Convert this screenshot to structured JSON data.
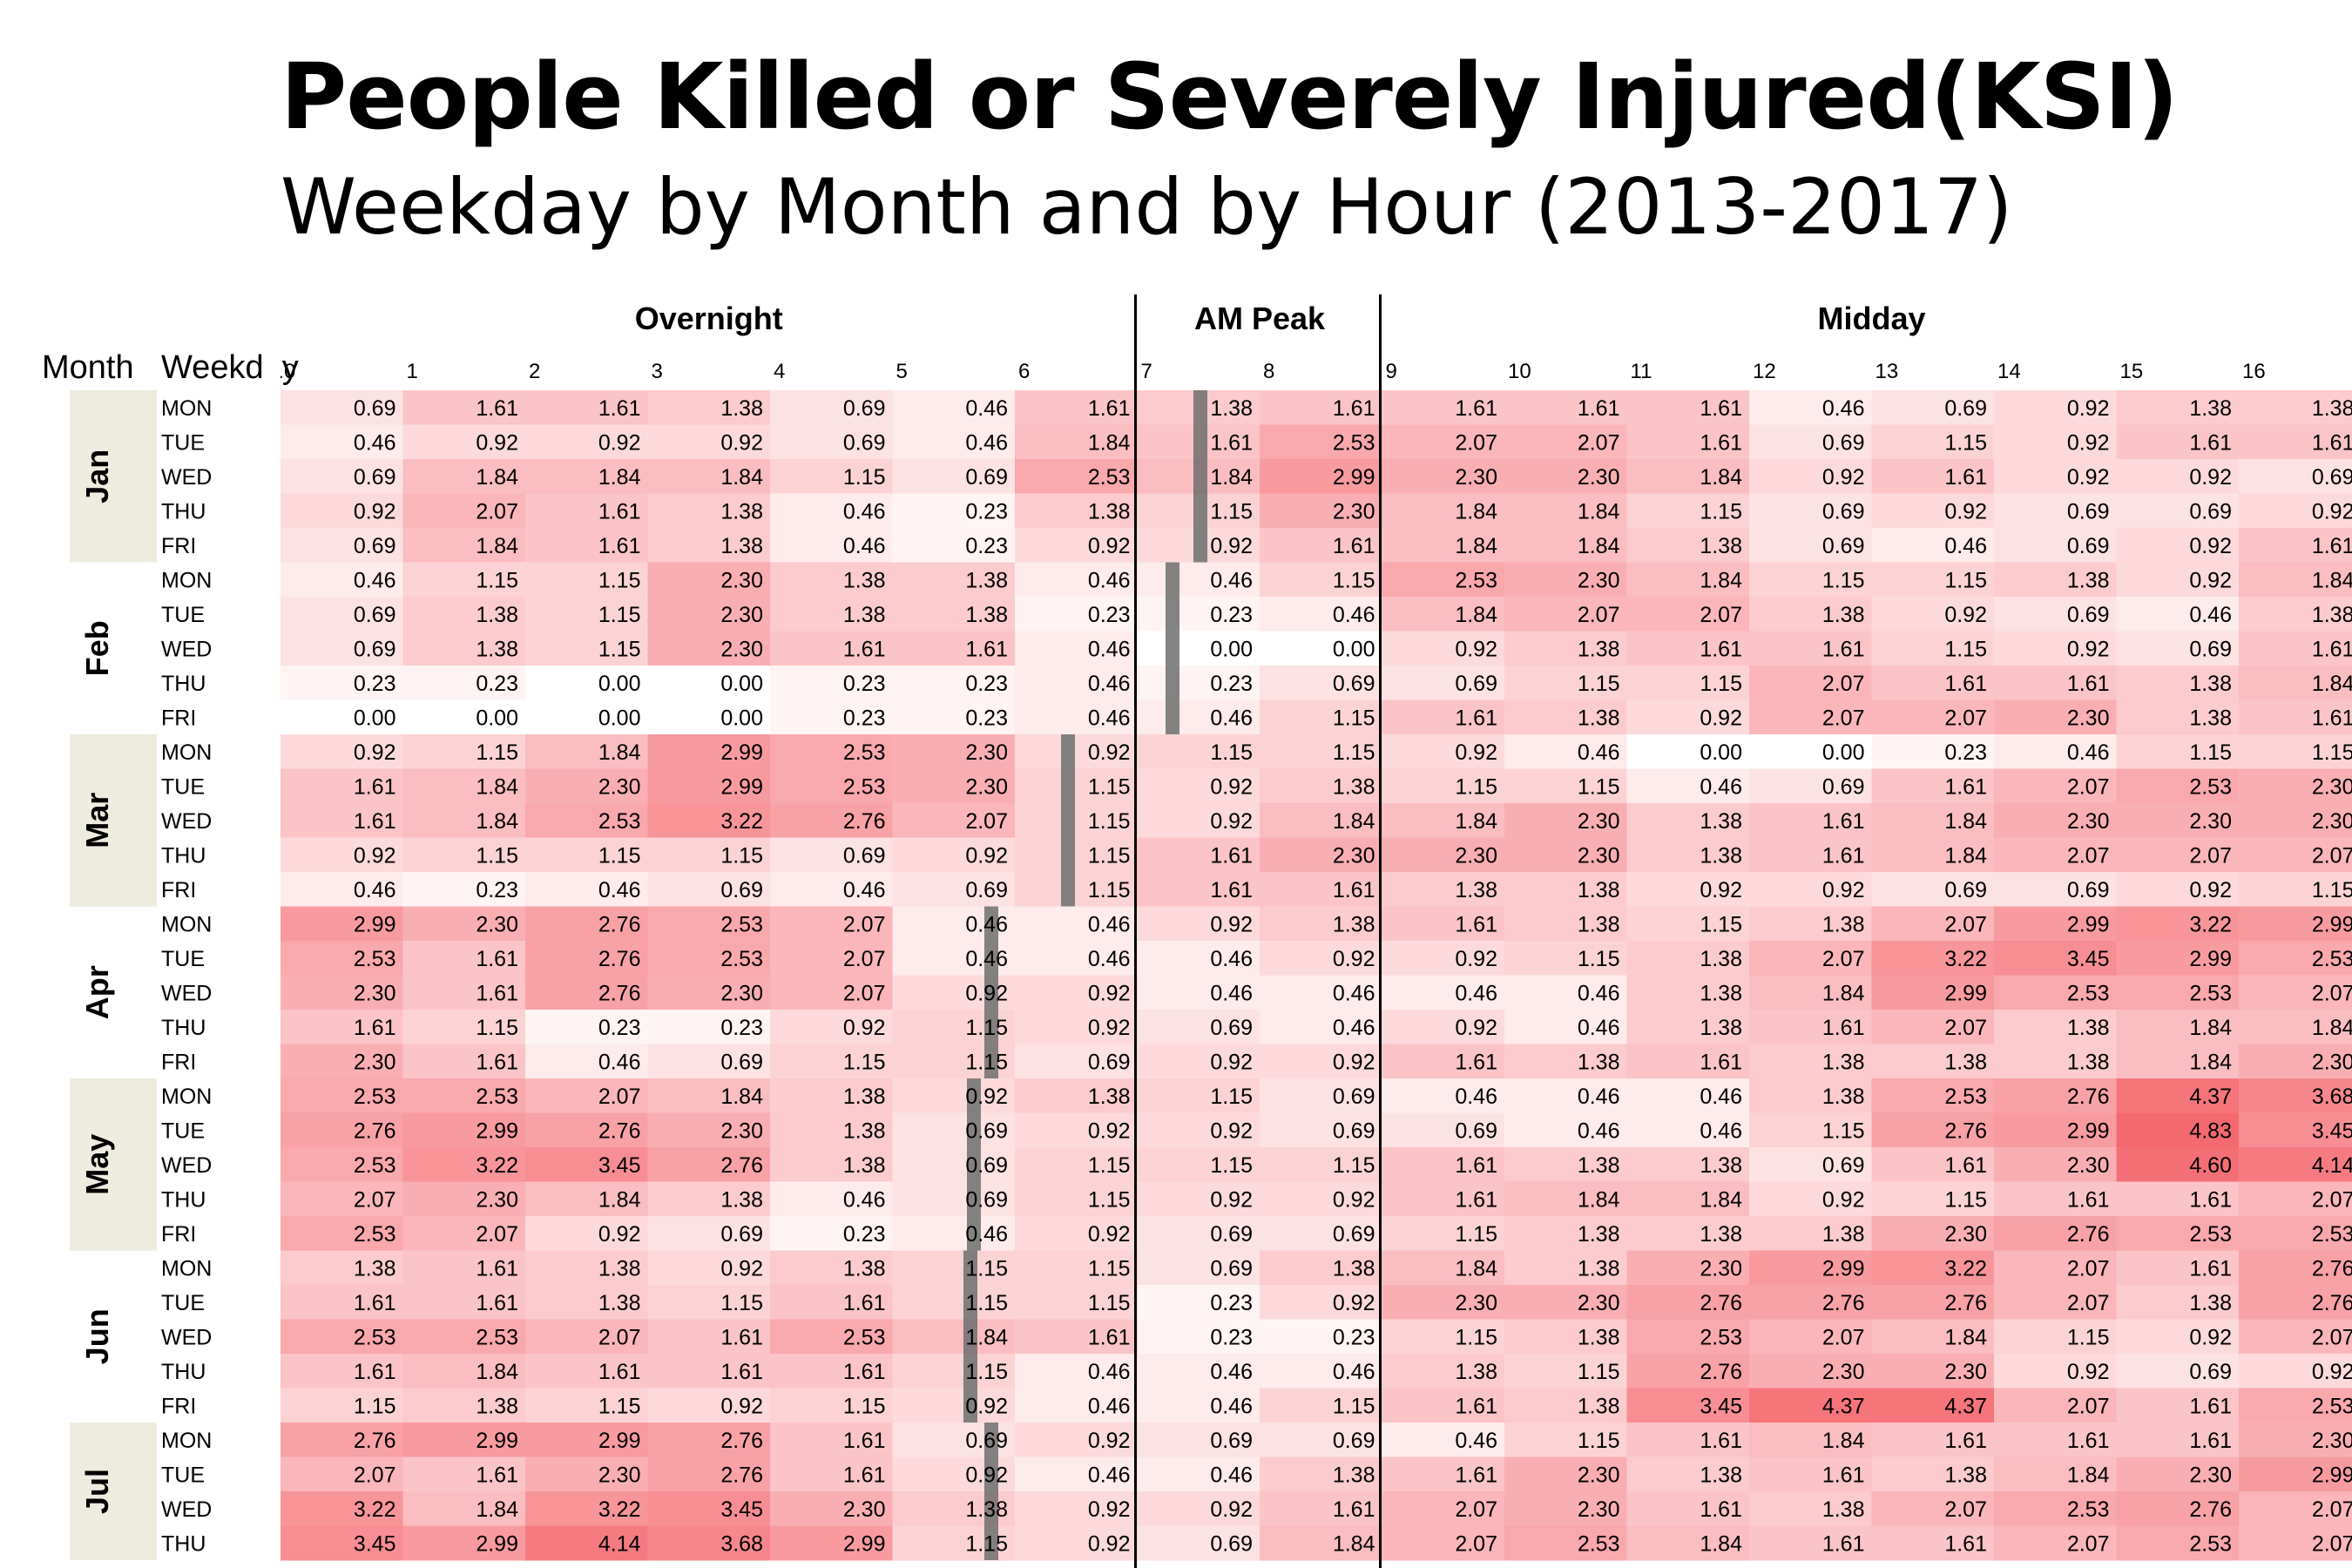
{
  "title": "People Killed or Severely Injured(KSI)",
  "subtitle": "Weekday by Month and by Hour (2013-2017)",
  "chart_data": {
    "type": "heatmap",
    "row_header_month": "Month",
    "row_header_weekday": "Weekday",
    "groups": [
      {
        "label": "Overnight",
        "hours": [
          0,
          1,
          2,
          3,
          4,
          5,
          6
        ]
      },
      {
        "label": "AM Peak",
        "hours": [
          7,
          8
        ]
      },
      {
        "label": "Midday",
        "hours": [
          9,
          10,
          11,
          12,
          13,
          14,
          15,
          16
        ]
      }
    ],
    "hours": [
      "0",
      "1",
      "2",
      "3",
      "4",
      "5",
      "6",
      "7",
      "8",
      "9",
      "10",
      "11",
      "12",
      "13",
      "14",
      "15",
      "16"
    ],
    "color_scale": {
      "low": "#ffffff",
      "high": "#f4696f",
      "min": 0,
      "max": 4.83
    },
    "months": [
      {
        "month": "Jan",
        "shaded": true,
        "rows": [
          {
            "weekday": "MON",
            "values": [
              0.69,
              1.61,
              1.61,
              1.38,
              0.69,
              0.46,
              1.61,
              1.38,
              1.61,
              1.61,
              1.61,
              1.61,
              0.46,
              0.69,
              0.92,
              1.38,
              1.38
            ]
          },
          {
            "weekday": "TUE",
            "values": [
              0.46,
              0.92,
              0.92,
              0.92,
              0.69,
              0.46,
              1.84,
              1.61,
              2.53,
              2.07,
              2.07,
              1.61,
              0.69,
              1.15,
              0.92,
              1.61,
              1.61
            ]
          },
          {
            "weekday": "WED",
            "values": [
              0.69,
              1.84,
              1.84,
              1.84,
              1.15,
              0.69,
              2.53,
              1.84,
              2.99,
              2.3,
              2.3,
              1.84,
              0.92,
              1.61,
              0.92,
              0.92,
              0.69
            ]
          },
          {
            "weekday": "THU",
            "values": [
              0.92,
              2.07,
              1.61,
              1.38,
              0.46,
              0.23,
              1.38,
              1.15,
              2.3,
              1.84,
              1.84,
              1.15,
              0.69,
              0.92,
              0.69,
              0.69,
              0.92
            ]
          },
          {
            "weekday": "FRI",
            "values": [
              0.69,
              1.84,
              1.61,
              1.38,
              0.46,
              0.23,
              0.92,
              0.92,
              1.61,
              1.84,
              1.84,
              1.38,
              0.69,
              0.46,
              0.69,
              0.92,
              1.61
            ]
          }
        ]
      },
      {
        "month": "Feb",
        "shaded": false,
        "rows": [
          {
            "weekday": "MON",
            "values": [
              0.46,
              1.15,
              1.15,
              2.3,
              1.38,
              1.38,
              0.46,
              0.46,
              1.15,
              2.53,
              2.3,
              1.84,
              1.15,
              1.15,
              1.38,
              0.92,
              1.84
            ]
          },
          {
            "weekday": "TUE",
            "values": [
              0.69,
              1.38,
              1.15,
              2.3,
              1.38,
              1.38,
              0.23,
              0.23,
              0.46,
              1.84,
              2.07,
              2.07,
              1.38,
              0.92,
              0.69,
              0.46,
              1.38
            ]
          },
          {
            "weekday": "WED",
            "values": [
              0.69,
              1.38,
              1.15,
              2.3,
              1.61,
              1.61,
              0.46,
              0.0,
              0.0,
              0.92,
              1.38,
              1.61,
              1.61,
              1.15,
              0.92,
              0.69,
              1.61
            ]
          },
          {
            "weekday": "THU",
            "values": [
              0.23,
              0.23,
              0.0,
              0.0,
              0.23,
              0.23,
              0.46,
              0.23,
              0.69,
              0.69,
              1.15,
              1.15,
              2.07,
              1.61,
              1.61,
              1.38,
              1.84
            ]
          },
          {
            "weekday": "FRI",
            "values": [
              0.0,
              0.0,
              0.0,
              0.0,
              0.23,
              0.23,
              0.46,
              0.46,
              1.15,
              1.61,
              1.38,
              0.92,
              2.07,
              2.07,
              2.3,
              1.38,
              1.61
            ]
          }
        ]
      },
      {
        "month": "Mar",
        "shaded": true,
        "rows": [
          {
            "weekday": "MON",
            "values": [
              0.92,
              1.15,
              1.84,
              2.99,
              2.53,
              2.3,
              0.92,
              1.15,
              1.15,
              0.92,
              0.46,
              0.0,
              0.0,
              0.23,
              0.46,
              1.15,
              1.15
            ]
          },
          {
            "weekday": "TUE",
            "values": [
              1.61,
              1.84,
              2.3,
              2.99,
              2.53,
              2.3,
              1.15,
              0.92,
              1.38,
              1.15,
              1.15,
              0.46,
              0.69,
              1.61,
              2.07,
              2.53,
              2.3
            ]
          },
          {
            "weekday": "WED",
            "values": [
              1.61,
              1.84,
              2.53,
              3.22,
              2.76,
              2.07,
              1.15,
              0.92,
              1.84,
              1.84,
              2.3,
              1.38,
              1.61,
              1.84,
              2.3,
              2.3,
              2.3
            ]
          },
          {
            "weekday": "THU",
            "values": [
              0.92,
              1.15,
              1.15,
              1.15,
              0.69,
              0.92,
              1.15,
              1.61,
              2.3,
              2.3,
              2.3,
              1.38,
              1.61,
              1.84,
              2.07,
              2.07,
              2.07
            ]
          },
          {
            "weekday": "FRI",
            "values": [
              0.46,
              0.23,
              0.46,
              0.69,
              0.46,
              0.69,
              1.15,
              1.61,
              1.61,
              1.38,
              1.38,
              0.92,
              0.92,
              0.69,
              0.69,
              0.92,
              1.15
            ]
          }
        ]
      },
      {
        "month": "Apr",
        "shaded": false,
        "rows": [
          {
            "weekday": "MON",
            "values": [
              2.99,
              2.3,
              2.76,
              2.53,
              2.07,
              0.46,
              0.46,
              0.92,
              1.38,
              1.61,
              1.38,
              1.15,
              1.38,
              2.07,
              2.99,
              3.22,
              2.99
            ]
          },
          {
            "weekday": "TUE",
            "values": [
              2.53,
              1.61,
              2.76,
              2.53,
              2.07,
              0.46,
              0.46,
              0.46,
              0.92,
              0.92,
              1.15,
              1.38,
              2.07,
              3.22,
              3.45,
              2.99,
              2.53
            ]
          },
          {
            "weekday": "WED",
            "values": [
              2.3,
              1.61,
              2.76,
              2.3,
              2.07,
              0.92,
              0.92,
              0.46,
              0.46,
              0.46,
              0.46,
              1.38,
              1.84,
              2.99,
              2.53,
              2.53,
              2.07
            ]
          },
          {
            "weekday": "THU",
            "values": [
              1.61,
              1.15,
              0.23,
              0.23,
              0.92,
              1.15,
              0.92,
              0.69,
              0.46,
              0.92,
              0.46,
              1.38,
              1.61,
              2.07,
              1.38,
              1.84,
              1.84
            ]
          },
          {
            "weekday": "FRI",
            "values": [
              2.3,
              1.61,
              0.46,
              0.69,
              1.15,
              1.15,
              0.69,
              0.92,
              0.92,
              1.61,
              1.38,
              1.61,
              1.38,
              1.38,
              1.38,
              1.84,
              2.3
            ]
          }
        ]
      },
      {
        "month": "May",
        "shaded": true,
        "rows": [
          {
            "weekday": "MON",
            "values": [
              2.53,
              2.53,
              2.07,
              1.84,
              1.38,
              0.92,
              1.38,
              1.15,
              0.69,
              0.46,
              0.46,
              0.46,
              1.38,
              2.53,
              2.76,
              4.37,
              3.68
            ]
          },
          {
            "weekday": "TUE",
            "values": [
              2.76,
              2.99,
              2.76,
              2.3,
              1.38,
              0.69,
              0.92,
              0.92,
              0.69,
              0.69,
              0.46,
              0.46,
              1.15,
              2.76,
              2.99,
              4.83,
              3.45
            ]
          },
          {
            "weekday": "WED",
            "values": [
              2.53,
              3.22,
              3.45,
              2.76,
              1.38,
              0.69,
              1.15,
              1.15,
              1.15,
              1.61,
              1.38,
              1.38,
              0.69,
              1.61,
              2.3,
              4.6,
              4.14
            ]
          },
          {
            "weekday": "THU",
            "values": [
              2.07,
              2.3,
              1.84,
              1.38,
              0.46,
              0.69,
              1.15,
              0.92,
              0.92,
              1.61,
              1.84,
              1.84,
              0.92,
              1.15,
              1.61,
              1.61,
              2.07
            ]
          },
          {
            "weekday": "FRI",
            "values": [
              2.53,
              2.07,
              0.92,
              0.69,
              0.23,
              0.46,
              0.92,
              0.69,
              0.69,
              1.15,
              1.38,
              1.38,
              1.38,
              2.3,
              2.76,
              2.53,
              2.53
            ]
          }
        ]
      },
      {
        "month": "Jun",
        "shaded": false,
        "rows": [
          {
            "weekday": "MON",
            "values": [
              1.38,
              1.61,
              1.38,
              0.92,
              1.38,
              1.15,
              1.15,
              0.69,
              1.38,
              1.84,
              1.38,
              2.3,
              2.99,
              3.22,
              2.07,
              1.61,
              2.76
            ]
          },
          {
            "weekday": "TUE",
            "values": [
              1.61,
              1.61,
              1.38,
              1.15,
              1.61,
              1.15,
              1.15,
              0.23,
              0.92,
              2.3,
              2.3,
              2.76,
              2.76,
              2.76,
              2.07,
              1.38,
              2.76
            ]
          },
          {
            "weekday": "WED",
            "values": [
              2.53,
              2.53,
              2.07,
              1.61,
              2.53,
              1.84,
              1.61,
              0.23,
              0.23,
              1.15,
              1.38,
              2.53,
              2.07,
              1.84,
              1.15,
              0.92,
              2.07
            ]
          },
          {
            "weekday": "THU",
            "values": [
              1.61,
              1.84,
              1.61,
              1.61,
              1.61,
              1.15,
              0.46,
              0.46,
              0.46,
              1.38,
              1.15,
              2.76,
              2.3,
              2.3,
              0.92,
              0.69,
              0.92
            ]
          },
          {
            "weekday": "FRI",
            "values": [
              1.15,
              1.38,
              1.15,
              0.92,
              1.15,
              0.92,
              0.46,
              0.46,
              1.15,
              1.61,
              1.38,
              3.45,
              4.37,
              4.37,
              2.07,
              1.61,
              2.53
            ]
          }
        ]
      },
      {
        "month": "Jul",
        "shaded": true,
        "rows": [
          {
            "weekday": "MON",
            "values": [
              2.76,
              2.99,
              2.99,
              2.76,
              1.61,
              0.69,
              0.92,
              0.69,
              0.69,
              0.46,
              1.15,
              1.61,
              1.84,
              1.61,
              1.61,
              1.61,
              2.3
            ]
          },
          {
            "weekday": "TUE",
            "values": [
              2.07,
              1.61,
              2.3,
              2.76,
              1.61,
              0.92,
              0.46,
              0.46,
              1.38,
              1.61,
              2.3,
              1.38,
              1.61,
              1.38,
              1.84,
              2.3,
              2.99
            ]
          },
          {
            "weekday": "WED",
            "values": [
              3.22,
              1.84,
              3.22,
              3.45,
              2.3,
              1.38,
              0.92,
              0.92,
              1.61,
              2.07,
              2.3,
              1.61,
              1.38,
              2.07,
              2.53,
              2.76,
              2.07
            ]
          },
          {
            "weekday": "THU",
            "values": [
              3.45,
              2.99,
              4.14,
              3.68,
              2.99,
              1.15,
              0.92,
              0.69,
              1.84,
              2.07,
              2.53,
              1.84,
              1.61,
              1.61,
              2.07,
              2.53,
              2.07
            ]
          }
        ]
      }
    ]
  }
}
